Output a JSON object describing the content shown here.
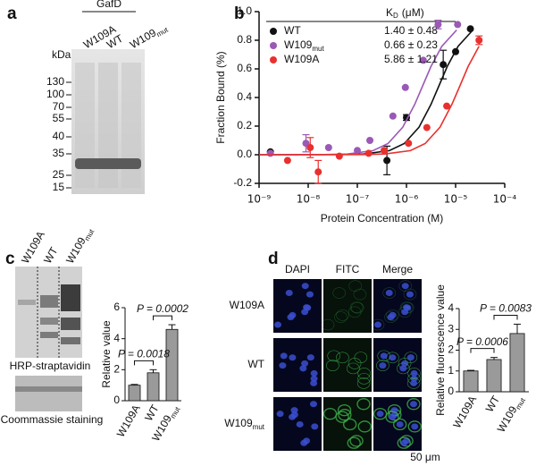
{
  "panel_labels": [
    "a",
    "b",
    "c",
    "d"
  ],
  "gel_a": {
    "group": "GafD",
    "lanes": [
      {
        "main": "W109A"
      },
      {
        "main": "WT"
      },
      {
        "main": "W109",
        "sub": "mut"
      }
    ],
    "unit": "kDa",
    "markers": [
      130,
      100,
      70,
      55,
      40,
      35,
      25,
      15
    ]
  },
  "blot_c": {
    "lanes": [
      {
        "main": "W109A"
      },
      {
        "main": "WT"
      },
      {
        "main": "W109",
        "sub": "mut"
      }
    ],
    "captions": [
      "HRP-straptavidin",
      "Coommassie staining"
    ]
  },
  "imaging_d": {
    "channels": [
      "DAPI",
      "FITC",
      "Merge"
    ],
    "rows": [
      {
        "main": "W109A"
      },
      {
        "main": "WT"
      },
      {
        "main": "W109",
        "sub": "mut"
      }
    ],
    "scale_bar": "50 μm"
  },
  "chart_data": [
    {
      "type": "scatter",
      "xlabel": "Protein Concentration (M)",
      "ylabel": "Fraction Bound (%)",
      "xlog": true,
      "xlim": [
        1e-09,
        0.0001
      ],
      "xticks": [
        {
          "value": 1e-09,
          "label": "10⁻⁹"
        },
        {
          "value": 1e-08,
          "label": "10⁻⁸"
        },
        {
          "value": 1e-07,
          "label": "10⁻⁷"
        },
        {
          "value": 1e-06,
          "label": "10⁻⁶"
        },
        {
          "value": 1e-05,
          "label": "10⁻⁵"
        },
        {
          "value": 0.0001,
          "label": "10⁻⁴"
        }
      ],
      "ylim": [
        -0.2,
        1.0
      ],
      "yticks": [
        -0.2,
        {
          "value": 0,
          "label": "0.0"
        },
        0.2,
        0.4,
        0.6,
        0.8,
        {
          "value": 1,
          "label": "1.0"
        }
      ],
      "legend_header": {
        "main": "K",
        "sub": "D",
        "unit": "(μM)"
      },
      "series": [
        {
          "name": "WT",
          "kd": "1.40 ± 0.48",
          "color": "#111111",
          "x": [
            1.7e-09,
            4e-07,
            1e-06,
            5.6e-06,
            1e-05,
            2e-05
          ],
          "values": [
            0.02,
            -0.04,
            0.26,
            0.63,
            0.72,
            0.88
          ],
          "errors": [
            0,
            0.1,
            0.02,
            0.1,
            0,
            0
          ],
          "fit_x": [
            1e-09,
            4.5e-08,
            1.35e-07,
            4.5e-07,
            9e-07,
            1.8e-06,
            3.15e-06,
            4.5e-06,
            6.75e-06,
            1.125e-05,
            2.25e-05
          ],
          "fit_y": [
            0,
            0.001,
            0.005,
            0.029,
            0.078,
            0.192,
            0.351,
            0.475,
            0.616,
            0.758,
            0.872
          ]
        },
        {
          "name": "W109",
          "name_sub": "mut",
          "kd": "0.66 ± 0.23",
          "color": "#9b59b6",
          "x": [
            1.7e-09,
            9e-09,
            2.6e-08,
            1e-07,
            1.8e-07,
            5.3e-07,
            9.5e-07,
            2.2e-06,
            4.4e-06,
            1.1e-05
          ],
          "values": [
            0.01,
            0.08,
            0.05,
            0.03,
            0.1,
            0.27,
            0.47,
            0.66,
            0.91,
            0.91
          ],
          "errors": [
            0,
            0.06,
            0,
            0,
            0,
            0,
            0,
            0,
            0.03,
            0
          ],
          "fit_x": [
            1e-09,
            2.1e-08,
            6.3e-08,
            2.1e-07,
            4.2e-07,
            8.4e-07,
            1.47e-06,
            2.1e-06,
            3.15e-06,
            5.25e-06,
            1.05e-05
          ],
          "fit_y": [
            0,
            0.001,
            0.005,
            0.029,
            0.078,
            0.192,
            0.351,
            0.475,
            0.616,
            0.758,
            0.872
          ]
        },
        {
          "name": "W109A",
          "kd": "5.86 ± 1.21",
          "color": "#e8312f",
          "x": [
            3.8e-09,
            1.1e-08,
            1.6e-08,
            4.3e-08,
            1.7e-07,
            3.5e-07,
            1.1e-06,
            2.6e-06,
            6.6e-06,
            3e-05
          ],
          "values": [
            -0.04,
            0.05,
            -0.12,
            -0.01,
            0.01,
            0.03,
            0.08,
            0.19,
            0.34,
            0.8
          ],
          "errors": [
            0,
            0.07,
            0.08,
            0,
            0,
            0,
            0,
            0,
            0,
            0.03
          ],
          "fit_x": [
            1e-09,
            1.2e-07,
            3.6e-07,
            1.2e-06,
            2.4e-06,
            4.8e-06,
            8.4e-06,
            1.2e-05,
            1.8e-05,
            3e-05
          ],
          "fit_y": [
            0,
            0.001,
            0.005,
            0.029,
            0.078,
            0.192,
            0.351,
            0.475,
            0.616,
            0.758
          ]
        }
      ]
    },
    {
      "type": "bar",
      "ylabel": "Relative value",
      "categories": [
        "W109A",
        "WT",
        "W109"
      ],
      "category_sub": {
        "2": "mut"
      },
      "values": [
        1.0,
        1.8,
        4.6
      ],
      "errors": [
        0.05,
        0.2,
        0.3
      ],
      "color": "#9a9a9a",
      "ylim": [
        0,
        6
      ],
      "yticks": [
        0,
        2,
        4,
        6
      ],
      "annotations": [
        "P = 0.0018",
        "P = 0.0002"
      ]
    },
    {
      "type": "bar",
      "ylabel": "Relative fluorescence value",
      "categories": [
        "W109A",
        "WT",
        "W109"
      ],
      "category_sub": {
        "2": "mut"
      },
      "values": [
        1.0,
        1.55,
        2.8
      ],
      "errors": [
        0.03,
        0.1,
        0.45
      ],
      "color": "#9a9a9a",
      "ylim": [
        0,
        4
      ],
      "yticks": [
        0,
        1,
        2,
        3,
        4
      ],
      "annotations": [
        "P = 0.0006",
        "P = 0.0083"
      ]
    }
  ]
}
